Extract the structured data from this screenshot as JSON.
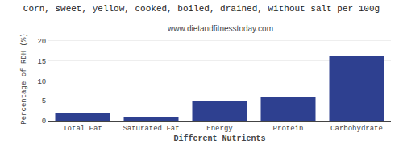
{
  "chart_data": {
    "type": "bar",
    "title": "Corn, sweet, yellow, cooked, boiled, drained, without salt per 100g",
    "subtitle": "www.dietandfitnesstoday.com",
    "xlabel": "Different Nutrients",
    "ylabel": "Percentage of RDH (%)",
    "categories": [
      "Total Fat",
      "Saturated Fat",
      "Energy",
      "Protein",
      "Carbohydrate"
    ],
    "values": [
      2.0,
      1.0,
      5.0,
      6.0,
      16.2
    ],
    "color": "#2e4090",
    "ylim": [
      0,
      21
    ],
    "yticks": [
      0,
      5,
      10,
      15,
      20
    ],
    "grid": true
  }
}
